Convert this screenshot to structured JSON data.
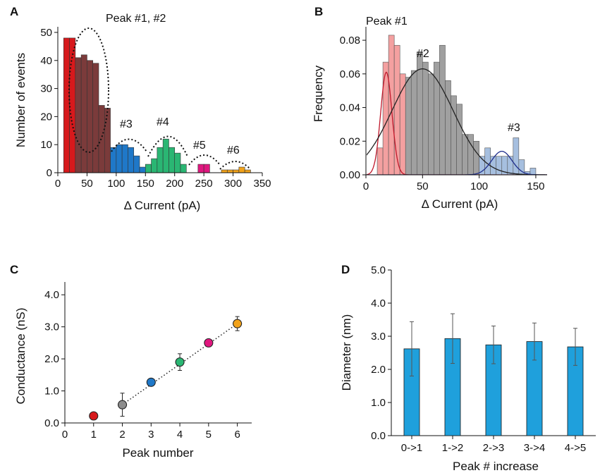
{
  "panels": {
    "A": "A",
    "B": "B",
    "C": "C",
    "D": "D"
  },
  "chart_data": [
    {
      "panel": "A",
      "type": "bar",
      "xlabel": "Δ Current (pA)",
      "ylabel": "Number of events",
      "xlim": [
        0,
        350
      ],
      "ylim": [
        0,
        52
      ],
      "xticks": [
        "0",
        "50",
        "100",
        "150",
        "200",
        "250",
        "300",
        "350"
      ],
      "yticks": [
        "0",
        "10",
        "20",
        "30",
        "40",
        "50"
      ],
      "bin_width": 10,
      "groups": [
        {
          "name": "#1",
          "color": "#d7191c",
          "bins": [
            {
              "x": 10,
              "y": 48
            },
            {
              "x": 20,
              "y": 48
            }
          ]
        },
        {
          "name": "#2",
          "color": "#7b3b3b",
          "bins": [
            {
              "x": 30,
              "y": 41
            },
            {
              "x": 40,
              "y": 42
            },
            {
              "x": 50,
              "y": 40
            },
            {
              "x": 60,
              "y": 39
            },
            {
              "x": 70,
              "y": 24
            },
            {
              "x": 80,
              "y": 23
            }
          ]
        },
        {
          "name": "#3",
          "color": "#1f78c8",
          "bins": [
            {
              "x": 90,
              "y": 9
            },
            {
              "x": 100,
              "y": 10
            },
            {
              "x": 110,
              "y": 10
            },
            {
              "x": 120,
              "y": 9
            },
            {
              "x": 130,
              "y": 6
            },
            {
              "x": 140,
              "y": 2
            }
          ]
        },
        {
          "name": "#4",
          "color": "#2ab673",
          "bins": [
            {
              "x": 150,
              "y": 3
            },
            {
              "x": 160,
              "y": 5
            },
            {
              "x": 170,
              "y": 9
            },
            {
              "x": 180,
              "y": 12
            },
            {
              "x": 190,
              "y": 9
            },
            {
              "x": 200,
              "y": 7
            },
            {
              "x": 210,
              "y": 3
            }
          ]
        },
        {
          "name": "#5",
          "color": "#e0177f",
          "bins": [
            {
              "x": 240,
              "y": 3
            },
            {
              "x": 250,
              "y": 3
            }
          ]
        },
        {
          "name": "#6",
          "color": "#f2a31b",
          "bins": [
            {
              "x": 280,
              "y": 1
            },
            {
              "x": 290,
              "y": 1
            },
            {
              "x": 300,
              "y": 1
            },
            {
              "x": 310,
              "y": 2
            },
            {
              "x": 320,
              "y": 1
            }
          ]
        }
      ],
      "annotations": [
        "Peak #1, #2",
        "#3",
        "#4",
        "#5",
        "#6"
      ]
    },
    {
      "panel": "B",
      "type": "bar",
      "xlabel": "Δ Current (pA)",
      "ylabel": "Frequency",
      "xlim": [
        0,
        160
      ],
      "ylim": [
        0,
        0.088
      ],
      "xticks": [
        "0",
        "50",
        "100",
        "150"
      ],
      "yticks": [
        "0.00",
        "0.02",
        "0.04",
        "0.06",
        "0.08"
      ],
      "bin_width": 5,
      "series": [
        {
          "name": "Peak #1",
          "color": "#f4a0a0",
          "bins": [
            {
              "x": 10,
              "y": 0.016
            },
            {
              "x": 15,
              "y": 0.067
            },
            {
              "x": 20,
              "y": 0.083
            },
            {
              "x": 25,
              "y": 0.077
            },
            {
              "x": 30,
              "y": 0.06
            }
          ]
        },
        {
          "name": "#2",
          "color": "#a0a0a0",
          "bins": [
            {
              "x": 35,
              "y": 0.058
            },
            {
              "x": 40,
              "y": 0.062
            },
            {
              "x": 45,
              "y": 0.073
            },
            {
              "x": 50,
              "y": 0.067
            },
            {
              "x": 55,
              "y": 0.06
            },
            {
              "x": 60,
              "y": 0.067
            },
            {
              "x": 65,
              "y": 0.077
            },
            {
              "x": 70,
              "y": 0.056
            },
            {
              "x": 75,
              "y": 0.047
            },
            {
              "x": 80,
              "y": 0.042
            },
            {
              "x": 85,
              "y": 0.024
            },
            {
              "x": 90,
              "y": 0.024
            },
            {
              "x": 95,
              "y": 0.02
            }
          ]
        },
        {
          "name": "#3",
          "color": "#a6bfdf",
          "bins": [
            {
              "x": 100,
              "y": 0.011
            },
            {
              "x": 105,
              "y": 0.016
            },
            {
              "x": 110,
              "y": 0.011
            },
            {
              "x": 115,
              "y": 0.011
            },
            {
              "x": 120,
              "y": 0.011
            },
            {
              "x": 125,
              "y": 0.011
            },
            {
              "x": 130,
              "y": 0.022
            },
            {
              "x": 135,
              "y": 0.009
            },
            {
              "x": 140,
              "y": 0.002
            },
            {
              "x": 145,
              "y": 0.004
            }
          ]
        }
      ],
      "fits": [
        {
          "name": "Peak #1",
          "color": "#c0182b",
          "mu": 18,
          "sigma": 5,
          "amp": 0.061
        },
        {
          "name": "#2",
          "color": "#222222",
          "mu": 50,
          "sigma": 27,
          "amp": 0.063
        },
        {
          "name": "#3",
          "color": "#1f2e8c",
          "mu": 120,
          "sigma": 9,
          "amp": 0.014
        }
      ],
      "annotations": [
        "Peak #1",
        "#2",
        "#3"
      ]
    },
    {
      "panel": "C",
      "type": "scatter",
      "xlabel": "Peak number",
      "ylabel": "Conductance (nS)",
      "xlim": [
        0,
        6.5
      ],
      "ylim": [
        0,
        4.4
      ],
      "xticks": [
        "0",
        "1",
        "2",
        "3",
        "4",
        "5",
        "6"
      ],
      "yticks": [
        "0.0",
        "1.0",
        "2.0",
        "3.0",
        "4.0"
      ],
      "points": [
        {
          "x": 1,
          "y": 0.22,
          "err": 0,
          "color": "#d7191c"
        },
        {
          "x": 2,
          "y": 0.57,
          "err": 0.36,
          "color": "#8c8c8c"
        },
        {
          "x": 3,
          "y": 1.27,
          "err": 0,
          "color": "#1f78c8"
        },
        {
          "x": 4,
          "y": 1.9,
          "err": 0.26,
          "color": "#2ab673"
        },
        {
          "x": 5,
          "y": 2.5,
          "err": 0,
          "color": "#e0177f"
        },
        {
          "x": 6,
          "y": 3.1,
          "err": 0.22,
          "color": "#f2a31b"
        }
      ],
      "fit_line": [
        [
          2,
          0.57
        ],
        [
          6,
          3.1
        ]
      ]
    },
    {
      "panel": "D",
      "type": "bar",
      "xlabel": "Peak # increase",
      "ylabel": "Diameter (nm)",
      "ylim": [
        0,
        5.0
      ],
      "yticks": [
        "0.0",
        "1.0",
        "2.0",
        "3.0",
        "4.0",
        "5.0"
      ],
      "categories": [
        "0->1",
        "1->2",
        "2->3",
        "3->4",
        "4->5"
      ],
      "values": [
        2.62,
        2.93,
        2.74,
        2.84,
        2.68
      ],
      "errors": [
        0.82,
        0.75,
        0.57,
        0.56,
        0.56
      ],
      "color": "#1fa0dc"
    }
  ]
}
